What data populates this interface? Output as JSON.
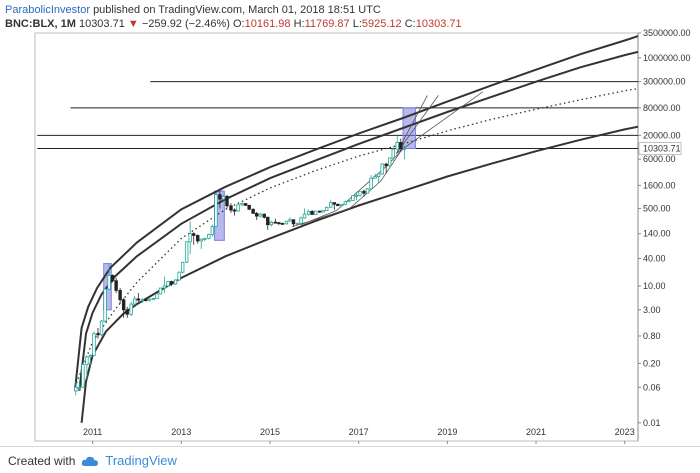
{
  "header": {
    "author": "ParabolicInvestor",
    "published": "published on TradingView.com, March 01, 2018 18:51 UTC"
  },
  "ohlc": {
    "symbol": "BNC:BLX, 1M",
    "last": "10303.71",
    "change_arrow": "▼",
    "change": "−259.92 (−2.46%)",
    "o_label": "O:",
    "o": "10161.98",
    "h_label": "H:",
    "h": "11769.87",
    "l_label": "L:",
    "l": "5925.12",
    "c_label": "C:",
    "c": "10303.71"
  },
  "footer": {
    "created_with": "Created with",
    "brand": "TradingView"
  },
  "colors": {
    "up": "#26a69a",
    "down": "#222222",
    "box": "#7b7fe0",
    "curve": "#333333",
    "price_label": "#c0392b"
  },
  "chart_data": {
    "type": "line",
    "y_scale": "log",
    "xlim": [
      2009.7,
      2023.3
    ],
    "ylim": [
      0.004,
      3500000
    ],
    "x_ticks": [
      {
        "x": 2011,
        "label": "2011"
      },
      {
        "x": 2013,
        "label": "2013"
      },
      {
        "x": 2015,
        "label": "2015"
      },
      {
        "x": 2017,
        "label": "2017"
      },
      {
        "x": 2019,
        "label": "2019"
      },
      {
        "x": 2021,
        "label": "2021"
      },
      {
        "x": 2023,
        "label": "2023"
      }
    ],
    "y_ticks": [
      {
        "v": 3500000,
        "label": "3500000.00"
      },
      {
        "v": 1000000,
        "label": "1000000.00"
      },
      {
        "v": 300000,
        "label": "300000.00"
      },
      {
        "v": 80000,
        "label": "80000.00"
      },
      {
        "v": 20000,
        "label": "20000.00"
      },
      {
        "v": 6000,
        "label": "6000.00"
      },
      {
        "v": 1600,
        "label": "1600.00"
      },
      {
        "v": 500,
        "label": "500.00"
      },
      {
        "v": 140,
        "label": "140.00"
      },
      {
        "v": 40,
        "label": "40.00"
      },
      {
        "v": 10,
        "label": "10.00"
      },
      {
        "v": 3,
        "label": "3.00"
      },
      {
        "v": 0.8,
        "label": "0.80"
      },
      {
        "v": 0.2,
        "label": "0.20"
      },
      {
        "v": 0.06,
        "label": "0.06"
      },
      {
        "v": 0.01,
        "label": "0.01"
      }
    ],
    "last_price": {
      "v": 10303.71,
      "label": "10303.71"
    },
    "horizontal_lines": [
      {
        "v": 300000,
        "x_start": 2012.3
      },
      {
        "v": 80000,
        "x_start": 2010.5
      },
      {
        "v": 20000,
        "x_start": 2009.75
      },
      {
        "v": 10303.71,
        "x_start": 2009.75
      }
    ],
    "boxes": [
      {
        "x0": 2011.25,
        "x1": 2011.42,
        "y0": 3,
        "y1": 31
      },
      {
        "x0": 2013.75,
        "x1": 2013.97,
        "y0": 100,
        "y1": 1200
      },
      {
        "x0": 2018.0,
        "x1": 2018.28,
        "y0": 10300,
        "y1": 80000
      }
    ],
    "channel_curves": [
      {
        "name": "",
        "points": [
          [
            2010.6,
            0.05
          ],
          [
            2010.75,
            1.2
          ],
          [
            2010.9,
            3.5
          ],
          [
            2011.1,
            9
          ],
          [
            2011.4,
            25
          ],
          [
            2012,
            90
          ],
          [
            2013,
            480
          ],
          [
            2014,
            1500
          ],
          [
            2015,
            4000
          ],
          [
            2016,
            9500
          ],
          [
            2017,
            22000
          ],
          [
            2018,
            48000
          ],
          [
            2019,
            110000
          ],
          [
            2020,
            250000
          ],
          [
            2021,
            550000
          ],
          [
            2022,
            1200000
          ],
          [
            2023,
            2400000
          ],
          [
            2023.3,
            3000000
          ]
        ]
      },
      {
        "name": "",
        "points": [
          [
            2010.7,
            0.05
          ],
          [
            2010.85,
            0.9
          ],
          [
            2011,
            2.6
          ],
          [
            2011.2,
            6.5
          ],
          [
            2011.5,
            16
          ],
          [
            2012,
            45
          ],
          [
            2013,
            230
          ],
          [
            2014,
            800
          ],
          [
            2015,
            2300
          ],
          [
            2016,
            5500
          ],
          [
            2017,
            13000
          ],
          [
            2018,
            29000
          ],
          [
            2019,
            65000
          ],
          [
            2020,
            140000
          ],
          [
            2021,
            300000
          ],
          [
            2022,
            620000
          ],
          [
            2023,
            1150000
          ],
          [
            2023.3,
            1350000
          ]
        ]
      },
      {
        "name": "",
        "points": [
          [
            2010.75,
            0.01
          ],
          [
            2010.85,
            0.08
          ],
          [
            2011,
            0.3
          ],
          [
            2011.3,
            1.0
          ],
          [
            2011.7,
            2.5
          ],
          [
            2012,
            4
          ],
          [
            2013,
            15
          ],
          [
            2014,
            45
          ],
          [
            2015,
            110
          ],
          [
            2016,
            260
          ],
          [
            2017,
            580
          ],
          [
            2018,
            1200
          ],
          [
            2019,
            2500
          ],
          [
            2020,
            4800
          ],
          [
            2021,
            9000
          ],
          [
            2022,
            16000
          ],
          [
            2023,
            27000
          ],
          [
            2023.3,
            31000
          ]
        ]
      }
    ],
    "trend_dotted": [
      [
        2010.6,
        0.06
      ],
      [
        2011,
        0.6
      ],
      [
        2011.5,
        3
      ],
      [
        2012,
        12
      ],
      [
        2013,
        110
      ],
      [
        2014,
        480
      ],
      [
        2015,
        1400
      ],
      [
        2016,
        3300
      ],
      [
        2017,
        7000
      ],
      [
        2018,
        13000
      ],
      [
        2019,
        25000
      ],
      [
        2020,
        45000
      ],
      [
        2021,
        75000
      ],
      [
        2022,
        120000
      ],
      [
        2023,
        190000
      ],
      [
        2023.3,
        210000
      ]
    ],
    "fan_lines": [
      {
        "start": [
          2017.85,
          8000
        ],
        "end": [
          2018.55,
          150000
        ]
      },
      {
        "start": [
          2017.85,
          8000
        ],
        "end": [
          2018.8,
          150000
        ]
      },
      {
        "start": [
          2017.85,
          8000
        ],
        "end": [
          2019.8,
          180000
        ]
      }
    ],
    "thin_curves": [
      [
        [
          2015.7,
          220
        ],
        [
          2016.5,
          450
        ],
        [
          2017.2,
          1800
        ],
        [
          2017.6,
          4000
        ],
        [
          2018.0,
          10000
        ]
      ],
      [
        [
          2015.5,
          200
        ],
        [
          2016.0,
          280
        ],
        [
          2016.8,
          500
        ],
        [
          2017.5,
          2000
        ],
        [
          2017.95,
          9000
        ]
      ]
    ],
    "candles": [
      {
        "t": 2010.62,
        "o": 0.05,
        "h": 0.08,
        "l": 0.04,
        "c": 0.06
      },
      {
        "t": 2010.7,
        "o": 0.06,
        "h": 0.08,
        "l": 0.05,
        "c": 0.06
      },
      {
        "t": 2010.78,
        "o": 0.06,
        "h": 0.2,
        "l": 0.06,
        "c": 0.19
      },
      {
        "t": 2010.87,
        "o": 0.19,
        "h": 0.3,
        "l": 0.09,
        "c": 0.28
      },
      {
        "t": 2010.95,
        "o": 0.28,
        "h": 0.32,
        "l": 0.18,
        "c": 0.3
      },
      {
        "t": 2011.03,
        "o": 0.3,
        "h": 1.0,
        "l": 0.3,
        "c": 0.9
      },
      {
        "t": 2011.12,
        "o": 0.9,
        "h": 1.2,
        "l": 0.7,
        "c": 0.85
      },
      {
        "t": 2011.2,
        "o": 0.85,
        "h": 1.8,
        "l": 0.8,
        "c": 1.7
      },
      {
        "t": 2011.28,
        "o": 1.7,
        "h": 9,
        "l": 1.6,
        "c": 8.5
      },
      {
        "t": 2011.37,
        "o": 8.5,
        "h": 31,
        "l": 8,
        "c": 17
      },
      {
        "t": 2011.45,
        "o": 17,
        "h": 18,
        "l": 12,
        "c": 13
      },
      {
        "t": 2011.53,
        "o": 13,
        "h": 15,
        "l": 7,
        "c": 8
      },
      {
        "t": 2011.62,
        "o": 8,
        "h": 9,
        "l": 4,
        "c": 5
      },
      {
        "t": 2011.7,
        "o": 5,
        "h": 5.5,
        "l": 2,
        "c": 3
      },
      {
        "t": 2011.78,
        "o": 3,
        "h": 3.5,
        "l": 2,
        "c": 2.4
      },
      {
        "t": 2011.87,
        "o": 2.4,
        "h": 4.5,
        "l": 2.2,
        "c": 4
      },
      {
        "t": 2011.95,
        "o": 4,
        "h": 6,
        "l": 3.8,
        "c": 5.2
      },
      {
        "t": 2012.03,
        "o": 5.2,
        "h": 7,
        "l": 4.5,
        "c": 4.9
      },
      {
        "t": 2012.12,
        "o": 4.9,
        "h": 5.5,
        "l": 4.3,
        "c": 5
      },
      {
        "t": 2012.2,
        "o": 5,
        "h": 5.4,
        "l": 4.6,
        "c": 4.9
      },
      {
        "t": 2012.28,
        "o": 4.9,
        "h": 5.3,
        "l": 4.5,
        "c": 5.2
      },
      {
        "t": 2012.37,
        "o": 5.2,
        "h": 5.5,
        "l": 4.9,
        "c": 5.3
      },
      {
        "t": 2012.45,
        "o": 5.3,
        "h": 7,
        "l": 5.2,
        "c": 6.7
      },
      {
        "t": 2012.53,
        "o": 6.7,
        "h": 9,
        "l": 6.5,
        "c": 9
      },
      {
        "t": 2012.62,
        "o": 9,
        "h": 16,
        "l": 7,
        "c": 10
      },
      {
        "t": 2012.7,
        "o": 10,
        "h": 13,
        "l": 9.5,
        "c": 12.5
      },
      {
        "t": 2012.78,
        "o": 12.5,
        "h": 13,
        "l": 10,
        "c": 11
      },
      {
        "t": 2012.87,
        "o": 11,
        "h": 14,
        "l": 10.5,
        "c": 13.5
      },
      {
        "t": 2012.95,
        "o": 13.5,
        "h": 21,
        "l": 13,
        "c": 20
      },
      {
        "t": 2013.03,
        "o": 20,
        "h": 34,
        "l": 19,
        "c": 33
      },
      {
        "t": 2013.12,
        "o": 33,
        "h": 95,
        "l": 32,
        "c": 93
      },
      {
        "t": 2013.2,
        "o": 93,
        "h": 260,
        "l": 50,
        "c": 140
      },
      {
        "t": 2013.28,
        "o": 140,
        "h": 150,
        "l": 80,
        "c": 128
      },
      {
        "t": 2013.37,
        "o": 128,
        "h": 135,
        "l": 85,
        "c": 97
      },
      {
        "t": 2013.45,
        "o": 97,
        "h": 110,
        "l": 65,
        "c": 106
      },
      {
        "t": 2013.53,
        "o": 106,
        "h": 115,
        "l": 95,
        "c": 110
      },
      {
        "t": 2013.62,
        "o": 110,
        "h": 140,
        "l": 105,
        "c": 134
      },
      {
        "t": 2013.7,
        "o": 134,
        "h": 220,
        "l": 120,
        "c": 200
      },
      {
        "t": 2013.78,
        "o": 200,
        "h": 1100,
        "l": 190,
        "c": 1000
      },
      {
        "t": 2013.87,
        "o": 1000,
        "h": 1200,
        "l": 500,
        "c": 800
      },
      {
        "t": 2013.95,
        "o": 800,
        "h": 1000,
        "l": 750,
        "c": 920
      },
      {
        "t": 2014.03,
        "o": 920,
        "h": 1000,
        "l": 500,
        "c": 570
      },
      {
        "t": 2014.12,
        "o": 570,
        "h": 650,
        "l": 400,
        "c": 460
      },
      {
        "t": 2014.2,
        "o": 460,
        "h": 500,
        "l": 350,
        "c": 440
      },
      {
        "t": 2014.28,
        "o": 440,
        "h": 630,
        "l": 420,
        "c": 600
      },
      {
        "t": 2014.37,
        "o": 600,
        "h": 670,
        "l": 560,
        "c": 640
      },
      {
        "t": 2014.45,
        "o": 640,
        "h": 650,
        "l": 570,
        "c": 585
      },
      {
        "t": 2014.53,
        "o": 585,
        "h": 600,
        "l": 460,
        "c": 480
      },
      {
        "t": 2014.62,
        "o": 480,
        "h": 500,
        "l": 380,
        "c": 390
      },
      {
        "t": 2014.7,
        "o": 390,
        "h": 420,
        "l": 280,
        "c": 340
      },
      {
        "t": 2014.78,
        "o": 340,
        "h": 400,
        "l": 320,
        "c": 375
      },
      {
        "t": 2014.87,
        "o": 375,
        "h": 390,
        "l": 300,
        "c": 320
      },
      {
        "t": 2014.95,
        "o": 320,
        "h": 330,
        "l": 170,
        "c": 220
      },
      {
        "t": 2015.03,
        "o": 220,
        "h": 270,
        "l": 200,
        "c": 250
      },
      {
        "t": 2015.12,
        "o": 250,
        "h": 300,
        "l": 240,
        "c": 245
      },
      {
        "t": 2015.2,
        "o": 245,
        "h": 250,
        "l": 215,
        "c": 235
      },
      {
        "t": 2015.28,
        "o": 235,
        "h": 245,
        "l": 225,
        "c": 230
      },
      {
        "t": 2015.37,
        "o": 230,
        "h": 265,
        "l": 220,
        "c": 263
      },
      {
        "t": 2015.45,
        "o": 263,
        "h": 320,
        "l": 255,
        "c": 283
      },
      {
        "t": 2015.53,
        "o": 283,
        "h": 285,
        "l": 200,
        "c": 230
      },
      {
        "t": 2015.62,
        "o": 230,
        "h": 245,
        "l": 220,
        "c": 236
      },
      {
        "t": 2015.7,
        "o": 236,
        "h": 330,
        "l": 235,
        "c": 310
      },
      {
        "t": 2015.78,
        "o": 310,
        "h": 500,
        "l": 300,
        "c": 375
      },
      {
        "t": 2015.87,
        "o": 375,
        "h": 470,
        "l": 350,
        "c": 430
      },
      {
        "t": 2015.95,
        "o": 430,
        "h": 460,
        "l": 360,
        "c": 370
      },
      {
        "t": 2016.03,
        "o": 370,
        "h": 440,
        "l": 365,
        "c": 437
      },
      {
        "t": 2016.12,
        "o": 437,
        "h": 440,
        "l": 400,
        "c": 416
      },
      {
        "t": 2016.2,
        "o": 416,
        "h": 465,
        "l": 415,
        "c": 450
      },
      {
        "t": 2016.28,
        "o": 450,
        "h": 550,
        "l": 445,
        "c": 530
      },
      {
        "t": 2016.37,
        "o": 530,
        "h": 780,
        "l": 520,
        "c": 670
      },
      {
        "t": 2016.45,
        "o": 670,
        "h": 680,
        "l": 470,
        "c": 620
      },
      {
        "t": 2016.53,
        "o": 620,
        "h": 630,
        "l": 560,
        "c": 575
      },
      {
        "t": 2016.62,
        "o": 575,
        "h": 620,
        "l": 570,
        "c": 610
      },
      {
        "t": 2016.7,
        "o": 610,
        "h": 740,
        "l": 605,
        "c": 700
      },
      {
        "t": 2016.78,
        "o": 700,
        "h": 760,
        "l": 690,
        "c": 745
      },
      {
        "t": 2016.87,
        "o": 745,
        "h": 980,
        "l": 740,
        "c": 960
      },
      {
        "t": 2016.95,
        "o": 960,
        "h": 1150,
        "l": 750,
        "c": 970
      },
      {
        "t": 2017.03,
        "o": 970,
        "h": 1200,
        "l": 900,
        "c": 1190
      },
      {
        "t": 2017.12,
        "o": 1190,
        "h": 1300,
        "l": 900,
        "c": 1080
      },
      {
        "t": 2017.2,
        "o": 1080,
        "h": 1400,
        "l": 1070,
        "c": 1350
      },
      {
        "t": 2017.28,
        "o": 1350,
        "h": 2700,
        "l": 1340,
        "c": 2300
      },
      {
        "t": 2017.37,
        "o": 2300,
        "h": 2900,
        "l": 2300,
        "c": 2500
      },
      {
        "t": 2017.45,
        "o": 2500,
        "h": 2950,
        "l": 1850,
        "c": 2850
      },
      {
        "t": 2017.53,
        "o": 2850,
        "h": 4900,
        "l": 2700,
        "c": 4700
      },
      {
        "t": 2017.62,
        "o": 4700,
        "h": 5000,
        "l": 3000,
        "c": 4300
      },
      {
        "t": 2017.7,
        "o": 4300,
        "h": 6400,
        "l": 4100,
        "c": 6400
      },
      {
        "t": 2017.78,
        "o": 6400,
        "h": 11400,
        "l": 5500,
        "c": 10000
      },
      {
        "t": 2017.87,
        "o": 10000,
        "h": 19700,
        "l": 10000,
        "c": 14000
      },
      {
        "t": 2017.95,
        "o": 14000,
        "h": 17000,
        "l": 9000,
        "c": 10300
      },
      {
        "t": 2018.03,
        "o": 10161.98,
        "h": 11769.87,
        "l": 5925.12,
        "c": 10303.71
      }
    ]
  }
}
